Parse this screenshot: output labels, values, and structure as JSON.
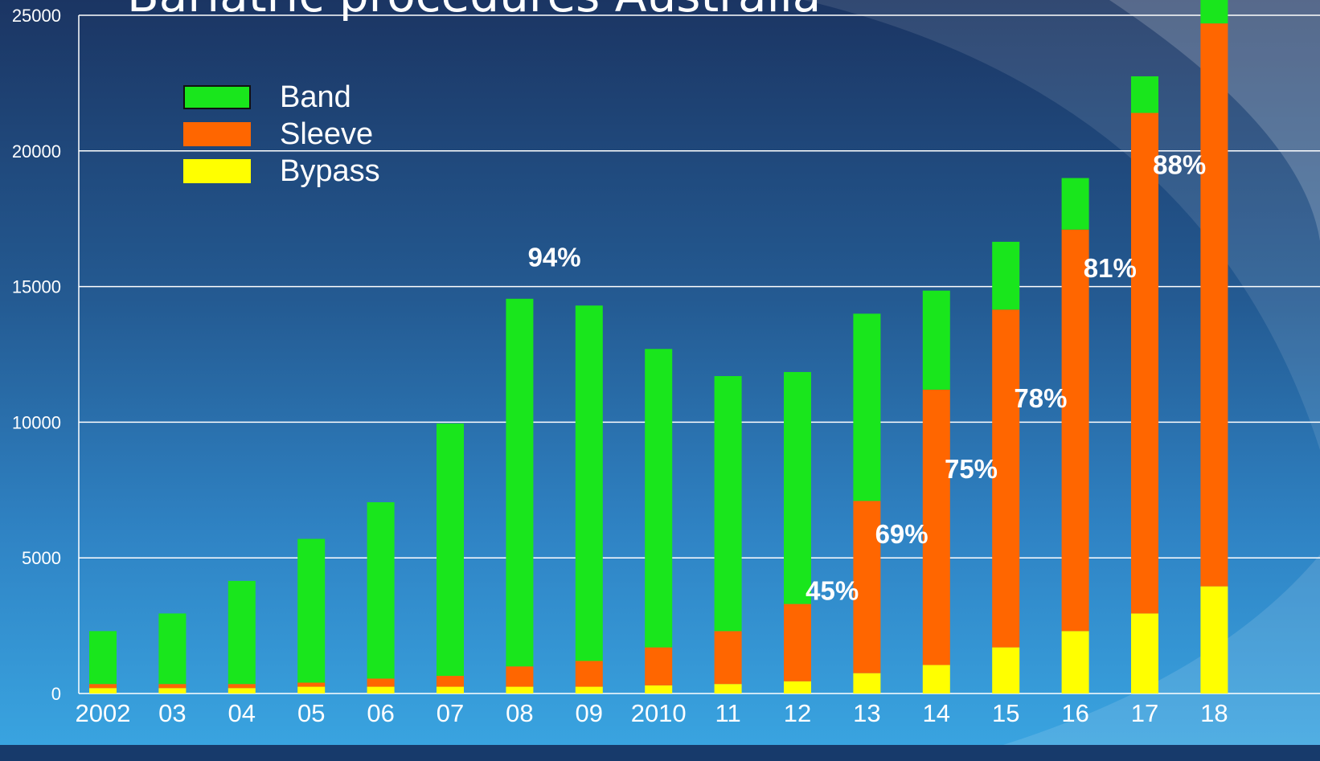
{
  "title": "Bariatric procedures Australia",
  "legend": {
    "items": [
      {
        "label": "Band",
        "color": "#19e61c"
      },
      {
        "label": "Sleeve",
        "color": "#ff6600"
      },
      {
        "label": "Bypass",
        "color": "#ffff00"
      }
    ]
  },
  "chart_data": {
    "type": "bar",
    "stacked": true,
    "title": "Bariatric procedures Australia",
    "xlabel": "",
    "ylabel": "",
    "categories": [
      "2002",
      "03",
      "04",
      "05",
      "06",
      "07",
      "08",
      "09",
      "2010",
      "11",
      "12",
      "13",
      "14",
      "15",
      "16",
      "17",
      "18"
    ],
    "series": [
      {
        "name": "Bypass",
        "color": "#ffff00",
        "values": [
          200,
          200,
          200,
          250,
          250,
          250,
          250,
          250,
          300,
          350,
          450,
          750,
          1050,
          1700,
          2300,
          2950,
          3950
        ]
      },
      {
        "name": "Sleeve",
        "color": "#ff6600",
        "values": [
          150,
          150,
          150,
          150,
          300,
          400,
          750,
          950,
          1400,
          1950,
          2850,
          6350,
          10150,
          12450,
          14800,
          18450,
          20750
        ]
      },
      {
        "name": "Band",
        "color": "#19e61c",
        "values": [
          1950,
          2600,
          3800,
          5300,
          6500,
          9300,
          13550,
          13100,
          11000,
          9400,
          8550,
          6900,
          3650,
          2500,
          1900,
          1350,
          1000
        ]
      }
    ],
    "ylim": [
      0,
      25000
    ],
    "yticks": [
      0,
      5000,
      10000,
      15000,
      20000,
      25000
    ],
    "grid": true,
    "legend_position": "top-left",
    "annotations": [
      {
        "text": "94%",
        "category": "08",
        "y": 16100
      },
      {
        "text": "45%",
        "category": "12",
        "y": 3800
      },
      {
        "text": "69%",
        "category": "13",
        "y": 5900
      },
      {
        "text": "75%",
        "category": "14",
        "y": 8300
      },
      {
        "text": "78%",
        "category": "15",
        "y": 10900
      },
      {
        "text": "81%",
        "category": "16",
        "y": 15700
      },
      {
        "text": "88%",
        "category": "17",
        "y": 19500
      }
    ]
  }
}
